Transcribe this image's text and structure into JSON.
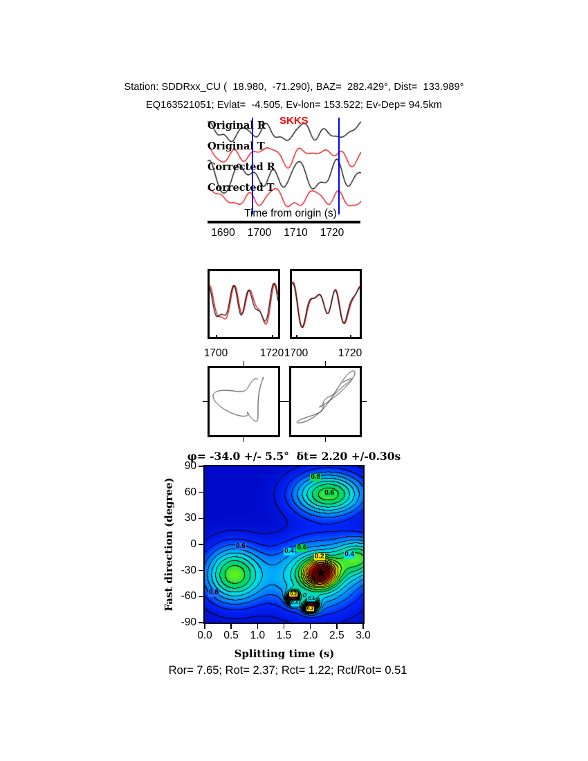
{
  "header": {
    "line1": "Station: SDDRxx_CU (  18.980,  -71.290), BAZ=  282.429°, Dist=  133.989°",
    "line2": "EQ163521051; Evlat=  -4.505, Ev-lon= 153.522; Ev-Dep= 94.5km"
  },
  "waveform_panel": {
    "traces": [
      {
        "label": "Original R",
        "color": "#000000"
      },
      {
        "label": "Original T",
        "color": "#e60000"
      },
      {
        "label": "Corrected R",
        "color": "#000000"
      },
      {
        "label": "Corrected T",
        "color": "#e60000"
      }
    ],
    "phase_label": "SKKS",
    "phase_color": "#ff0000",
    "xlabel": "Time from origin (s)",
    "xticks": [
      "1690",
      "1700",
      "1710",
      "1720"
    ],
    "window_times": [
      1698,
      1722
    ],
    "window_color": "#0000ee"
  },
  "zoom_panels": [
    {
      "xticks": [
        "1700",
        "1720"
      ]
    },
    {
      "xticks": [
        "1700",
        "1720"
      ]
    }
  ],
  "contour": {
    "title": "φ= -34.0 +/- 5.5°  δt= 2.20 +/-0.30s",
    "ylabel": "Fast direction (degree)",
    "xlabel": "Splitting time (s)",
    "yticks": [
      "90",
      "60",
      "30",
      "0",
      "-30",
      "-60",
      "-90"
    ],
    "xticks": [
      "0.0",
      "0.5",
      "1.0",
      "1.5",
      "2.0",
      "2.5",
      "3.0"
    ],
    "star_glyph": "★",
    "labels": [
      {
        "text": "0.8",
        "dt": 2.1,
        "phi": 77,
        "bg": "#00e050",
        "fs": 10
      },
      {
        "text": "0.6",
        "dt": 2.36,
        "phi": 59,
        "bg": "#00e050",
        "fs": 10
      },
      {
        "text": "0.6",
        "dt": 0.68,
        "phi": -2,
        "bg": "#2a6bff",
        "fs": 10
      },
      {
        "text": "0.8",
        "dt": 0.17,
        "phi": -56,
        "bg": "#2a6bff",
        "fs": 10
      },
      {
        "text": "0.4",
        "dt": 1.6,
        "phi": -8,
        "bg": "#00e0ff",
        "fs": 10
      },
      {
        "text": "0.6",
        "dt": 1.84,
        "phi": -4,
        "bg": "#00e050",
        "fs": 10
      },
      {
        "text": "0.2",
        "dt": 2.17,
        "phi": -14,
        "bg": "#ffe600",
        "fs": 10
      },
      {
        "text": "0.4",
        "dt": 2.74,
        "phi": -12,
        "bg": "#00e0ff",
        "fs": 10
      },
      {
        "text": "0.2",
        "dt": 1.68,
        "phi": -57,
        "bg": "#ffe600",
        "fs": 7
      },
      {
        "text": "0.4",
        "dt": 2.02,
        "phi": -63,
        "bg": "#00e0ff",
        "fs": 7
      },
      {
        "text": "0.4",
        "dt": 1.7,
        "phi": -68,
        "bg": "#00e0ff",
        "fs": 7
      },
      {
        "text": "0.2",
        "dt": 2.0,
        "phi": -74,
        "bg": "#ffe600",
        "fs": 7
      }
    ]
  },
  "footer": {
    "text": "Ror= 7.65; Rot= 2.37; Rct= 1.22; Rct/Rot= 0.51"
  },
  "chart_data": [
    {
      "type": "line",
      "name": "seismogram-traces",
      "series": [
        "Original R",
        "Original T",
        "Corrected R",
        "Corrected T"
      ],
      "phase": "SKKS",
      "xlabel": "Time from origin (s)",
      "xticks": [
        1690,
        1700,
        1710,
        1720
      ],
      "xlim": [
        1685,
        1727
      ],
      "analysis_window_s": [
        1698,
        1722
      ]
    },
    {
      "type": "line",
      "name": "waveform-overlay-original",
      "series": [
        "red",
        "black"
      ],
      "xticks": [
        1700,
        1720
      ]
    },
    {
      "type": "line",
      "name": "waveform-overlay-corrected",
      "series": [
        "red",
        "black"
      ],
      "xticks": [
        1700,
        1720
      ]
    },
    {
      "type": "scatter",
      "name": "particle-motion-original"
    },
    {
      "type": "scatter",
      "name": "particle-motion-corrected"
    },
    {
      "type": "heatmap",
      "name": "splitting-error-surface",
      "title": "φ= -34.0 +/- 5.5°  δt= 2.20 +/-0.30s",
      "xlabel": "Splitting time (s)",
      "ylabel": "Fast direction (degree)",
      "xlim": [
        0.0,
        3.0
      ],
      "ylim": [
        -90,
        90
      ],
      "xticks": [
        0.0,
        0.5,
        1.0,
        1.5,
        2.0,
        2.5,
        3.0
      ],
      "yticks": [
        90,
        60,
        30,
        0,
        -30,
        -60,
        -90
      ],
      "best_fit": {
        "phi_deg": -34.0,
        "phi_err_deg": 5.5,
        "dt_s": 2.2,
        "dt_err_s": 0.3
      },
      "star": [
        2.2,
        -34
      ],
      "contour_label_values": [
        0.2,
        0.4,
        0.6,
        0.8
      ],
      "stats": {
        "Ror": 7.65,
        "Rot": 2.37,
        "Rct": 1.22,
        "Rct_over_Rot": 0.51
      }
    }
  ],
  "render_params": {
    "seis": [
      {
        "base": 26,
        "amp": 13,
        "color": "#000000",
        "h": [
          [
            5.2,
            0.55,
            0.8
          ],
          [
            7.8,
            0.35,
            2.2
          ],
          [
            3.1,
            0.45,
            1.5
          ],
          [
            11.0,
            0.18,
            0.3
          ]
        ]
      },
      {
        "base": 57,
        "amp": 13,
        "color": "#e60000",
        "h": [
          [
            4.6,
            0.5,
            2.6
          ],
          [
            6.9,
            0.4,
            0.9
          ],
          [
            2.7,
            0.5,
            1.9
          ],
          [
            10.0,
            0.22,
            2.8
          ]
        ]
      },
      {
        "base": 89,
        "amp": 19,
        "color": "#000000",
        "h": [
          [
            5.0,
            0.6,
            1.2
          ],
          [
            7.3,
            0.4,
            0.1
          ],
          [
            3.3,
            0.5,
            2.4
          ],
          [
            9.5,
            0.2,
            1.6
          ]
        ]
      },
      {
        "base": 121,
        "amp": 14,
        "color": "#e60000",
        "h": [
          [
            4.8,
            0.55,
            0.4
          ],
          [
            7.0,
            0.35,
            1.8
          ],
          [
            2.9,
            0.45,
            0.6
          ],
          [
            10.5,
            0.2,
            2.1
          ]
        ]
      }
    ],
    "zoom": [
      {
        "red": [
          [
            3.3,
            0.7,
            0.9
          ],
          [
            5.2,
            0.4,
            2.0
          ],
          [
            1.7,
            0.5,
            2.7
          ]
        ],
        "black": [
          [
            3.3,
            0.65,
            1.25
          ],
          [
            5.2,
            0.45,
            2.35
          ],
          [
            1.7,
            0.42,
            3.0
          ]
        ]
      },
      {
        "red": [
          [
            3.1,
            0.75,
            1.4
          ],
          [
            4.9,
            0.38,
            0.5
          ],
          [
            1.9,
            0.45,
            2.3
          ]
        ],
        "black": [
          [
            3.1,
            0.7,
            1.55
          ],
          [
            4.9,
            0.4,
            0.65
          ],
          [
            1.9,
            0.43,
            2.45
          ]
        ]
      }
    ],
    "particle": [
      {
        "hx": [
          [
            1.05,
            0.8,
            0.4
          ],
          [
            2.3,
            0.35,
            1.2
          ],
          [
            3.7,
            0.18,
            2.2
          ]
        ],
        "hy": [
          [
            1.05,
            0.75,
            2.1
          ],
          [
            3.1,
            0.3,
            0.6
          ],
          [
            2.2,
            0.2,
            1.0
          ]
        ]
      },
      {
        "hx": [
          [
            1.5,
            0.8,
            0.3
          ],
          [
            2.8,
            0.4,
            1.1
          ],
          [
            5.1,
            0.12,
            0.7
          ]
        ],
        "hy": [
          [
            1.5,
            0.75,
            0.35
          ],
          [
            2.8,
            0.38,
            1.15
          ],
          [
            3.9,
            0.15,
            1.9
          ]
        ]
      }
    ],
    "surface_gaussians": [
      [
        0.68,
        2.2,
        0.28,
        -33,
        14
      ],
      [
        0.45,
        2.1,
        0.8,
        -36,
        38
      ],
      [
        0.5,
        2.35,
        0.65,
        58,
        24
      ],
      [
        0.5,
        0.55,
        0.55,
        -35,
        32
      ],
      [
        0.85,
        1.68,
        0.11,
        -62,
        7
      ],
      [
        0.85,
        2.02,
        0.13,
        -71,
        7
      ],
      [
        0.38,
        2.95,
        0.45,
        -15,
        22
      ]
    ]
  }
}
